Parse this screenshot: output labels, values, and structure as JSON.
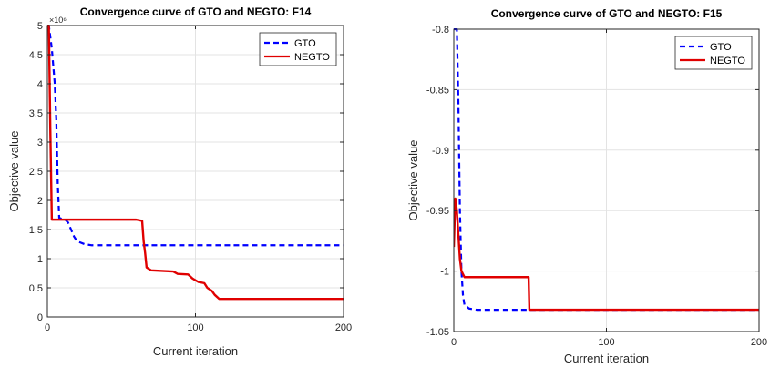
{
  "chart_data": [
    {
      "type": "line",
      "title": "Convergence curve of GTO and NEGTO: F14",
      "xlabel": "Current iteration",
      "ylabel": "Objective value",
      "xlim": [
        0,
        200
      ],
      "ylim": [
        0,
        5
      ],
      "xticks": [
        0,
        100,
        200
      ],
      "yticks": [
        0,
        0.5,
        1,
        1.5,
        2,
        2.5,
        3,
        3.5,
        4,
        4.5,
        5
      ],
      "ytick_labels": [
        "0",
        "0.5",
        "1",
        "1.5",
        "2",
        "2.5",
        "3",
        "3.5",
        "4",
        "4.5",
        "5"
      ],
      "y_exponent": "×10⁶",
      "grid": true,
      "legend_position": "top-right",
      "series": [
        {
          "name": "GTO",
          "color": "#0000ff",
          "dash": "dashed",
          "points": [
            [
              0,
              5.0
            ],
            [
              1,
              5.0
            ],
            [
              3,
              4.6
            ],
            [
              5,
              4.0
            ],
            [
              6,
              3.4
            ],
            [
              7,
              2.3
            ],
            [
              8,
              1.7
            ],
            [
              10,
              1.68
            ],
            [
              12,
              1.67
            ],
            [
              14,
              1.62
            ],
            [
              16,
              1.5
            ],
            [
              18,
              1.38
            ],
            [
              20,
              1.3
            ],
            [
              25,
              1.25
            ],
            [
              30,
              1.23
            ],
            [
              200,
              1.23
            ]
          ]
        },
        {
          "name": "NEGTO",
          "color": "#e00000",
          "dash": "solid",
          "points": [
            [
              0,
              5.0
            ],
            [
              1,
              5.0
            ],
            [
              2,
              3.2
            ],
            [
              3,
              1.67
            ],
            [
              60,
              1.67
            ],
            [
              64,
              1.65
            ],
            [
              65,
              1.3
            ],
            [
              66,
              1.1
            ],
            [
              67,
              0.85
            ],
            [
              70,
              0.8
            ],
            [
              85,
              0.78
            ],
            [
              88,
              0.74
            ],
            [
              95,
              0.73
            ],
            [
              98,
              0.66
            ],
            [
              102,
              0.6
            ],
            [
              106,
              0.58
            ],
            [
              108,
              0.5
            ],
            [
              111,
              0.45
            ],
            [
              113,
              0.38
            ],
            [
              116,
              0.31
            ],
            [
              200,
              0.31
            ]
          ]
        }
      ]
    },
    {
      "type": "line",
      "title": "Convergence curve of GTO and NEGTO: F15",
      "xlabel": "Current iteration",
      "ylabel": "Objective value",
      "xlim": [
        0,
        200
      ],
      "ylim": [
        -1.05,
        -0.8
      ],
      "xticks": [
        0,
        100,
        200
      ],
      "yticks": [
        -1.05,
        -1,
        -0.95,
        -0.9,
        -0.85,
        -0.8
      ],
      "ytick_labels": [
        "-1.05",
        "-1",
        "-0.95",
        "-0.9",
        "-0.85",
        "-0.8"
      ],
      "grid": true,
      "legend_position": "top-right",
      "series": [
        {
          "name": "GTO",
          "color": "#0000ff",
          "dash": "dashed",
          "points": [
            [
              0,
              -0.8
            ],
            [
              2,
              -0.8
            ],
            [
              3,
              -0.86
            ],
            [
              4,
              -0.95
            ],
            [
              5,
              -1.0
            ],
            [
              6,
              -1.02
            ],
            [
              7,
              -1.028
            ],
            [
              10,
              -1.031
            ],
            [
              15,
              -1.032
            ],
            [
              48,
              -1.032
            ],
            [
              200,
              -1.032
            ]
          ]
        },
        {
          "name": "NEGTO",
          "color": "#e00000",
          "dash": "solid",
          "points": [
            [
              0,
              -0.98
            ],
            [
              1,
              -0.94
            ],
            [
              2,
              -0.95
            ],
            [
              3,
              -0.97
            ],
            [
              4,
              -0.99
            ],
            [
              5,
              -1.0
            ],
            [
              7,
              -1.005
            ],
            [
              49,
              -1.005
            ],
            [
              49.5,
              -1.032
            ],
            [
              200,
              -1.032
            ]
          ]
        }
      ]
    }
  ]
}
